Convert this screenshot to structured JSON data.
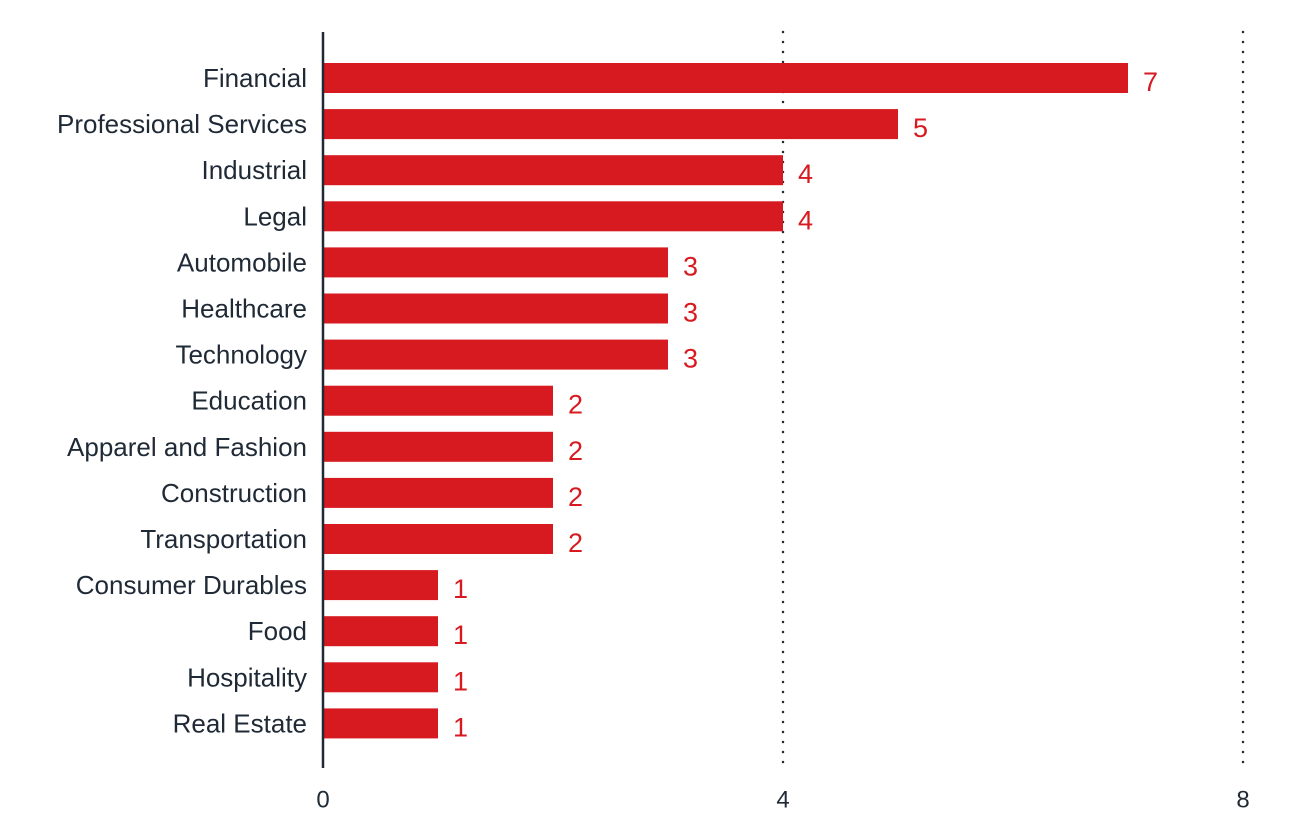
{
  "chart_data": {
    "type": "bar",
    "orientation": "horizontal",
    "title": "",
    "xlabel": "",
    "ylabel": "",
    "categories": [
      "Financial",
      "Professional Services",
      "Industrial",
      "Legal",
      "Automobile",
      "Healthcare",
      "Technology",
      "Education",
      "Apparel and Fashion",
      "Construction",
      "Transportation",
      "Consumer Durables",
      "Food",
      "Hospitality",
      "Real Estate"
    ],
    "values": [
      7,
      5,
      4,
      4,
      3,
      3,
      3,
      2,
      2,
      2,
      2,
      1,
      1,
      1,
      1
    ],
    "xlim": [
      0,
      8
    ],
    "xticks": [
      0,
      4,
      8
    ],
    "xtick_labels": [
      "0",
      "4",
      "8"
    ],
    "grid": "dotted vertical lines at 4 and 8",
    "data_labels": true,
    "bar_color": "#d71920",
    "label_color": "#d71920",
    "axis_color": "#1f2a36"
  }
}
